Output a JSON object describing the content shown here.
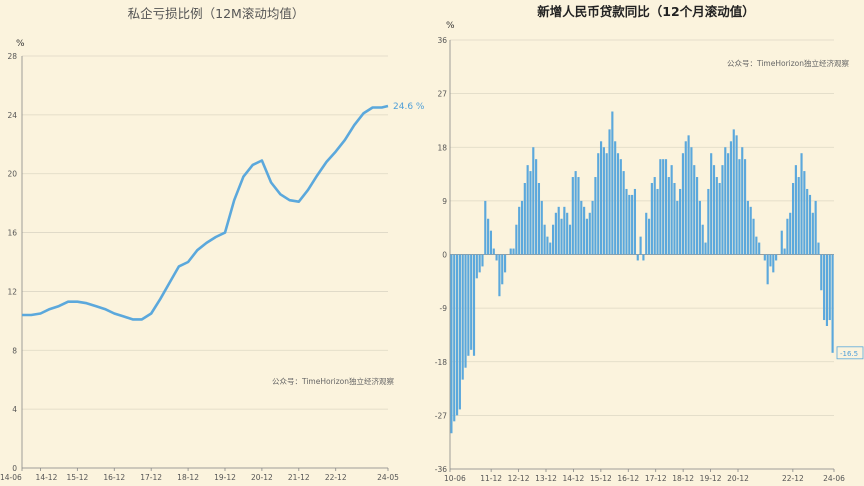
{
  "chart_data": [
    {
      "type": "line",
      "title": "私企亏损比例（12M滚动均值）",
      "unit": "%",
      "watermark": "公众号：TimeHorizon独立经济观察",
      "ylim": [
        0,
        28
      ],
      "yticks": [
        "0",
        "4",
        "8",
        "12",
        "16",
        "20",
        "24",
        "28"
      ],
      "xtick_labels": [
        "14-06",
        "14-12",
        "15-12",
        "16-12",
        "17-12",
        "18-12",
        "19-12",
        "20-12",
        "21-12",
        "22-12",
        "24-05"
      ],
      "end_label": "24.6 %",
      "color": "#5ba8dc",
      "series": [
        {
          "x": "2014-06",
          "y": 10.4
        },
        {
          "x": "2014-09",
          "y": 10.4
        },
        {
          "x": "2014-12",
          "y": 10.5
        },
        {
          "x": "2015-03",
          "y": 10.8
        },
        {
          "x": "2015-06",
          "y": 11.0
        },
        {
          "x": "2015-09",
          "y": 11.3
        },
        {
          "x": "2015-12",
          "y": 11.3
        },
        {
          "x": "2016-03",
          "y": 11.2
        },
        {
          "x": "2016-06",
          "y": 11.0
        },
        {
          "x": "2016-09",
          "y": 10.8
        },
        {
          "x": "2016-12",
          "y": 10.5
        },
        {
          "x": "2017-03",
          "y": 10.3
        },
        {
          "x": "2017-06",
          "y": 10.1
        },
        {
          "x": "2017-09",
          "y": 10.1
        },
        {
          "x": "2017-12",
          "y": 10.5
        },
        {
          "x": "2018-03",
          "y": 11.5
        },
        {
          "x": "2018-06",
          "y": 12.6
        },
        {
          "x": "2018-09",
          "y": 13.7
        },
        {
          "x": "2018-12",
          "y": 14.0
        },
        {
          "x": "2019-03",
          "y": 14.8
        },
        {
          "x": "2019-06",
          "y": 15.3
        },
        {
          "x": "2019-09",
          "y": 15.7
        },
        {
          "x": "2019-12",
          "y": 16.0
        },
        {
          "x": "2020-03",
          "y": 18.2
        },
        {
          "x": "2020-06",
          "y": 19.8
        },
        {
          "x": "2020-09",
          "y": 20.6
        },
        {
          "x": "2020-12",
          "y": 20.9
        },
        {
          "x": "2021-03",
          "y": 19.4
        },
        {
          "x": "2021-06",
          "y": 18.6
        },
        {
          "x": "2021-09",
          "y": 18.2
        },
        {
          "x": "2021-12",
          "y": 18.1
        },
        {
          "x": "2022-03",
          "y": 18.9
        },
        {
          "x": "2022-06",
          "y": 19.9
        },
        {
          "x": "2022-09",
          "y": 20.8
        },
        {
          "x": "2022-12",
          "y": 21.5
        },
        {
          "x": "2023-03",
          "y": 22.3
        },
        {
          "x": "2023-06",
          "y": 23.3
        },
        {
          "x": "2023-09",
          "y": 24.1
        },
        {
          "x": "2023-12",
          "y": 24.5
        },
        {
          "x": "2024-03",
          "y": 24.5
        },
        {
          "x": "2024-05",
          "y": 24.6
        }
      ]
    },
    {
      "type": "bar",
      "title": "新增人民币贷款同比（12个月滚动值）",
      "unit": "%",
      "watermark": "公众号：TimeHorizon独立经济观察",
      "ylim": [
        -36,
        36
      ],
      "yticks": [
        "-36",
        "-27",
        "-18",
        "-9",
        "0",
        "9",
        "18",
        "27",
        "36"
      ],
      "xtick_labels": [
        "10-06",
        "11-12",
        "12-12",
        "13-12",
        "14-12",
        "15-12",
        "16-12",
        "17-12",
        "18-12",
        "19-12",
        "20-12",
        "22-12",
        "24-06"
      ],
      "end_label": "-16.5",
      "color": "#5ba8dc",
      "values": [
        -30,
        -28,
        -27,
        -26,
        -21,
        -19,
        -17,
        -16,
        -17,
        -4,
        -3,
        -2,
        9,
        6,
        4,
        1,
        -1,
        -7,
        -5,
        -3,
        0,
        1,
        1,
        5,
        8,
        9,
        12,
        15,
        14,
        18,
        16,
        12,
        9,
        5,
        3,
        2,
        5,
        7,
        8,
        6,
        8,
        7,
        5,
        13,
        14,
        13,
        9,
        8,
        6,
        7,
        9,
        13,
        17,
        19,
        18,
        17,
        21,
        24,
        19,
        17,
        16,
        14,
        11,
        10,
        10,
        11,
        -1,
        3,
        -1,
        7,
        6,
        12,
        13,
        11,
        16,
        16,
        16,
        13,
        15,
        12,
        9,
        11,
        17,
        19,
        20,
        18,
        15,
        13,
        9,
        5,
        2,
        11,
        17,
        15,
        13,
        12,
        15,
        18,
        17,
        19,
        21,
        20,
        16,
        18,
        16,
        9,
        8,
        6,
        3,
        2,
        0,
        -1,
        -5,
        -2,
        -3,
        -1,
        0,
        4,
        1,
        6,
        7,
        12,
        15,
        13,
        17,
        14,
        11,
        10,
        7,
        9,
        2,
        -6,
        -11,
        -12,
        -11,
        -16.5
      ]
    }
  ]
}
